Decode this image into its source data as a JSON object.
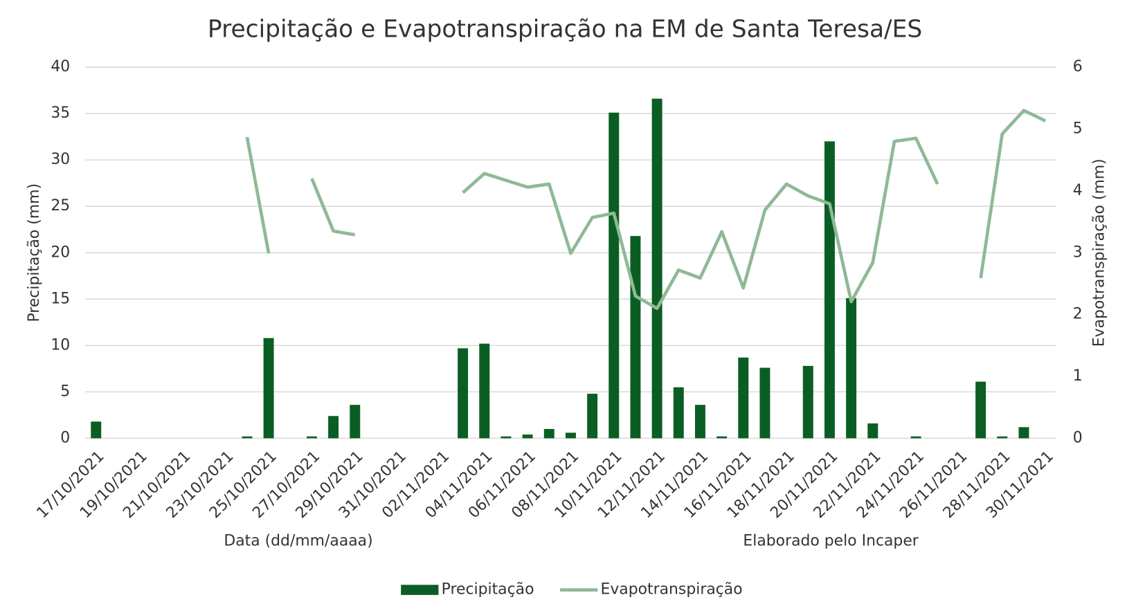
{
  "chart_data": {
    "type": "bar",
    "title": "Precipitação e Evapotranspiração na EM de Santa Teresa/ES",
    "y_label": "Precipitação (mm)",
    "y2_label": "Evapotranspiração (mm)",
    "annotations": [
      "Data (dd/mm/aaaa)",
      "Elaborado pelo Incaper"
    ],
    "categories": [
      "17/10/2021",
      null,
      "19/10/2021",
      null,
      "21/10/2021",
      null,
      "23/10/2021",
      null,
      "25/10/2021",
      null,
      "27/10/2021",
      null,
      "29/10/2021",
      null,
      "31/10/2021",
      null,
      "02/11/2021",
      null,
      "04/11/2021",
      null,
      "06/11/2021",
      null,
      "08/11/2021",
      null,
      "10/11/2021",
      null,
      "12/11/2021",
      null,
      "14/11/2021",
      null,
      "16/11/2021",
      null,
      "18/11/2021",
      null,
      "20/11/2021",
      null,
      "22/11/2021",
      null,
      "24/11/2021",
      null,
      "26/11/2021",
      null,
      "28/11/2021",
      null,
      "30/11/2021"
    ],
    "series": [
      {
        "name": "Precipitação",
        "type": "bar",
        "color": "#0b5e23",
        "values": [
          1.8,
          0,
          0,
          0,
          0,
          0,
          0,
          0.2,
          10.8,
          0,
          0.2,
          2.4,
          3.6,
          0,
          0,
          0,
          0,
          9.7,
          10.2,
          0.2,
          0.4,
          1.0,
          0.6,
          4.8,
          35.1,
          21.8,
          36.6,
          5.5,
          3.6,
          0.2,
          8.7,
          7.6,
          0,
          7.8,
          32.0,
          15.1,
          1.6,
          0,
          0.2,
          0,
          0,
          6.1,
          0.2,
          1.2,
          0
        ]
      },
      {
        "name": "Evapotranspiração",
        "type": "line",
        "axis": "y2",
        "color": "#8fb996",
        "values": [
          null,
          null,
          null,
          null,
          null,
          null,
          null,
          4.87,
          2.99,
          null,
          4.2,
          3.35,
          3.29,
          null,
          null,
          null,
          null,
          3.97,
          4.28,
          4.17,
          4.06,
          4.11,
          2.99,
          3.57,
          3.64,
          2.3,
          2.1,
          2.72,
          2.59,
          3.34,
          2.43,
          3.69,
          4.11,
          3.92,
          3.79,
          2.21,
          2.84,
          4.8,
          4.85,
          4.11,
          null,
          2.59,
          4.92,
          5.3,
          5.13
        ]
      }
    ],
    "ylim": [
      0,
      40
    ],
    "yticks": [
      0,
      5,
      10,
      15,
      20,
      25,
      30,
      35,
      40
    ],
    "y2lim": [
      0,
      6
    ],
    "y2ticks": [
      0,
      1,
      2,
      3,
      4,
      5,
      6
    ],
    "grid": true,
    "legend": "bottom"
  }
}
